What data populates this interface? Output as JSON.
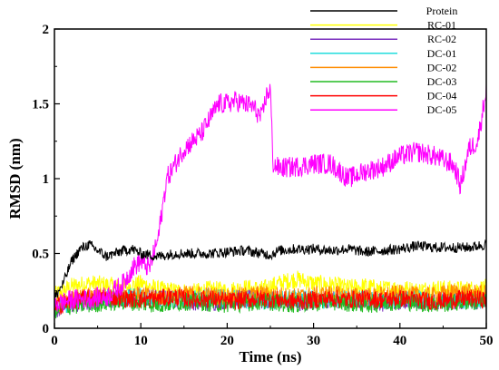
{
  "chart_data": {
    "type": "line",
    "xlabel": "Time (ns)",
    "ylabel": "RMSD (nm)",
    "xlim": [
      0,
      50
    ],
    "ylim": [
      0,
      2
    ],
    "x_ticks": [
      "0",
      "10",
      "20",
      "30",
      "40",
      "50"
    ],
    "y_ticks": [
      "0",
      "0.5",
      "1",
      "1.5",
      "2"
    ],
    "grid": false,
    "legend_position": "top-right",
    "series": [
      {
        "name": "Protein",
        "color": "#000000",
        "x": [
          0,
          1,
          2,
          3,
          4,
          5,
          6,
          7,
          8,
          9,
          10,
          12,
          14,
          16,
          18,
          20,
          22,
          24,
          25,
          26,
          28,
          30,
          32,
          34,
          36,
          38,
          40,
          42,
          44,
          46,
          48,
          50
        ],
        "y": [
          0.2,
          0.3,
          0.45,
          0.53,
          0.56,
          0.52,
          0.48,
          0.5,
          0.52,
          0.53,
          0.5,
          0.48,
          0.5,
          0.5,
          0.5,
          0.51,
          0.52,
          0.5,
          0.49,
          0.52,
          0.53,
          0.53,
          0.52,
          0.53,
          0.51,
          0.52,
          0.53,
          0.55,
          0.54,
          0.54,
          0.54,
          0.56
        ]
      },
      {
        "name": "RC-01",
        "color": "#ffff00",
        "x": [
          0,
          2,
          4,
          6,
          8,
          10,
          12,
          14,
          16,
          18,
          20,
          22,
          24,
          26,
          28,
          30,
          32,
          34,
          36,
          38,
          40,
          42,
          44,
          46,
          48,
          50
        ],
        "y": [
          0.22,
          0.28,
          0.3,
          0.29,
          0.27,
          0.3,
          0.26,
          0.25,
          0.24,
          0.26,
          0.25,
          0.27,
          0.26,
          0.3,
          0.33,
          0.3,
          0.29,
          0.27,
          0.28,
          0.26,
          0.27,
          0.25,
          0.27,
          0.26,
          0.26,
          0.27
        ]
      },
      {
        "name": "RC-02",
        "color": "#7b2fbe",
        "x": [
          0,
          2,
          4,
          6,
          8,
          10,
          12,
          14,
          16,
          18,
          20,
          22,
          24,
          26,
          28,
          30,
          32,
          34,
          36,
          38,
          40,
          42,
          44,
          46,
          48,
          50
        ],
        "y": [
          0.12,
          0.16,
          0.18,
          0.19,
          0.2,
          0.21,
          0.2,
          0.19,
          0.18,
          0.17,
          0.19,
          0.2,
          0.18,
          0.19,
          0.17,
          0.18,
          0.2,
          0.18,
          0.19,
          0.17,
          0.18,
          0.19,
          0.17,
          0.18,
          0.19,
          0.18
        ]
      },
      {
        "name": "DC-01",
        "color": "#22dddd",
        "x": [
          0,
          2,
          4,
          6,
          8,
          10,
          12,
          14,
          16,
          18,
          20,
          22,
          24,
          26,
          28,
          30,
          32,
          34,
          36,
          38,
          40,
          42,
          44,
          46,
          48,
          50
        ],
        "y": [
          0.13,
          0.17,
          0.19,
          0.2,
          0.21,
          0.22,
          0.2,
          0.19,
          0.2,
          0.21,
          0.2,
          0.19,
          0.18,
          0.19,
          0.2,
          0.19,
          0.18,
          0.2,
          0.19,
          0.18,
          0.19,
          0.2,
          0.18,
          0.19,
          0.18,
          0.19
        ]
      },
      {
        "name": "DC-02",
        "color": "#ff8c00",
        "x": [
          0,
          2,
          4,
          6,
          8,
          10,
          12,
          14,
          16,
          18,
          20,
          22,
          24,
          26,
          28,
          30,
          32,
          34,
          36,
          38,
          40,
          42,
          44,
          46,
          48,
          50
        ],
        "y": [
          0.15,
          0.19,
          0.21,
          0.22,
          0.23,
          0.22,
          0.21,
          0.22,
          0.23,
          0.22,
          0.21,
          0.22,
          0.23,
          0.22,
          0.21,
          0.22,
          0.23,
          0.22,
          0.21,
          0.22,
          0.23,
          0.22,
          0.22,
          0.24,
          0.24,
          0.23
        ]
      },
      {
        "name": "DC-03",
        "color": "#22bb22",
        "x": [
          0,
          2,
          4,
          6,
          8,
          10,
          12,
          14,
          16,
          18,
          20,
          22,
          24,
          26,
          28,
          30,
          32,
          34,
          36,
          38,
          40,
          42,
          44,
          46,
          48,
          50
        ],
        "y": [
          0.12,
          0.15,
          0.16,
          0.17,
          0.18,
          0.17,
          0.16,
          0.17,
          0.18,
          0.17,
          0.16,
          0.17,
          0.18,
          0.17,
          0.16,
          0.17,
          0.18,
          0.17,
          0.16,
          0.17,
          0.18,
          0.17,
          0.16,
          0.17,
          0.18,
          0.17
        ]
      },
      {
        "name": "DC-04",
        "color": "#ff0000",
        "x": [
          0,
          2,
          4,
          6,
          8,
          10,
          12,
          14,
          16,
          18,
          20,
          22,
          24,
          26,
          28,
          30,
          32,
          34,
          36,
          38,
          40,
          42,
          44,
          46,
          48,
          50
        ],
        "y": [
          0.14,
          0.18,
          0.2,
          0.21,
          0.2,
          0.19,
          0.2,
          0.21,
          0.19,
          0.2,
          0.18,
          0.19,
          0.2,
          0.19,
          0.18,
          0.19,
          0.2,
          0.19,
          0.2,
          0.19,
          0.2,
          0.19,
          0.18,
          0.19,
          0.2,
          0.19
        ]
      },
      {
        "name": "DC-05",
        "color": "#ff00ff",
        "x": [
          0,
          2,
          4,
          6,
          8,
          9,
          10,
          11,
          11.5,
          12,
          12.5,
          13,
          14,
          15,
          16,
          17,
          18,
          19,
          20,
          21,
          22,
          23,
          24,
          24.5,
          25,
          25.3,
          26,
          28,
          30,
          32,
          34,
          36,
          38,
          40,
          42,
          44,
          46,
          46.5,
          47,
          48,
          49,
          50
        ],
        "y": [
          0.16,
          0.19,
          0.2,
          0.21,
          0.3,
          0.4,
          0.45,
          0.4,
          0.5,
          0.6,
          0.8,
          1.0,
          1.1,
          1.2,
          1.25,
          1.3,
          1.4,
          1.5,
          1.5,
          1.52,
          1.5,
          1.48,
          1.4,
          1.55,
          1.6,
          1.1,
          1.07,
          1.08,
          1.1,
          1.1,
          1.0,
          1.05,
          1.08,
          1.15,
          1.18,
          1.15,
          1.1,
          1.05,
          0.95,
          1.2,
          1.25,
          1.6
        ]
      }
    ]
  }
}
